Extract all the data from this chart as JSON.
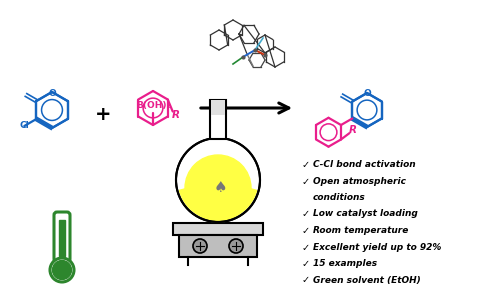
{
  "blue": "#1565C0",
  "pink": "#E91E8C",
  "green": "#2D862D",
  "yellow": "#FFFF44",
  "black": "#000000",
  "gray": "#888888",
  "lightgray": "#CCCCCC",
  "darkgray": "#555555",
  "bg": "#FFFFFF",
  "bullet_points": [
    "C-Cl bond activation",
    "Open atmospheric",
    "conditions",
    "Low catalyst loading",
    "Room temperature",
    "Excellent yield up to 92%",
    "15 examples",
    "Green solvent (EtOH)"
  ],
  "figw": 5.0,
  "figh": 2.88,
  "dpi": 100
}
